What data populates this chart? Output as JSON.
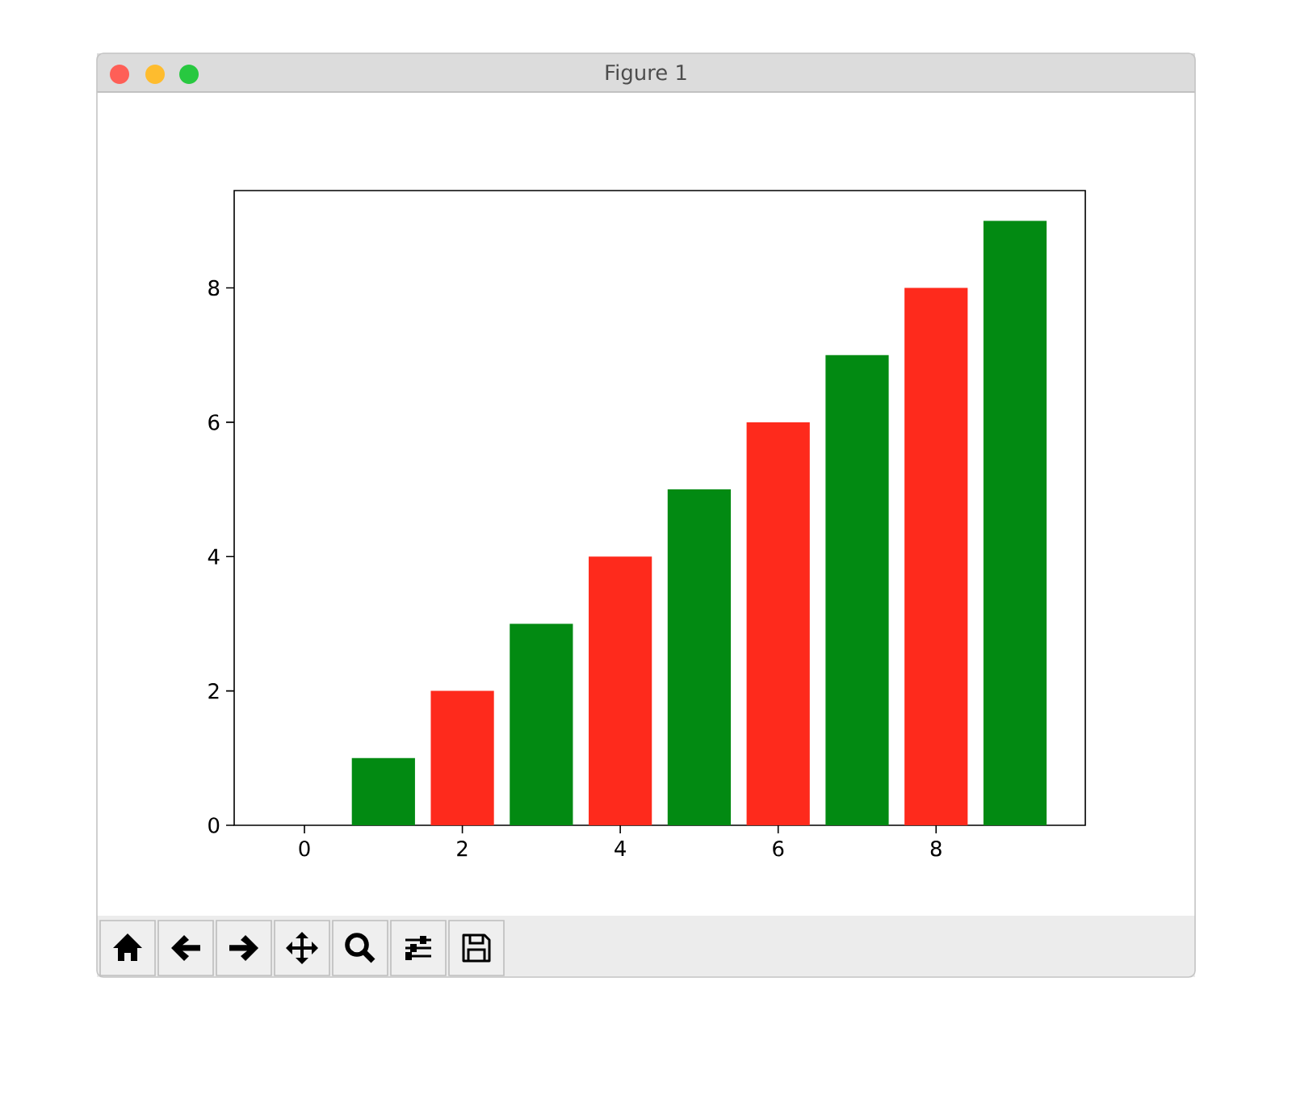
{
  "chart_data": {
    "type": "bar",
    "title": "Figure 1",
    "x": [
      0,
      1,
      2,
      3,
      4,
      5,
      6,
      7,
      8,
      9
    ],
    "values": [
      0,
      1,
      2,
      3,
      4,
      5,
      6,
      7,
      8,
      9
    ],
    "colors": [
      "#fe2a1c",
      "#028a12",
      "#fe2a1c",
      "#028a12",
      "#fe2a1c",
      "#028a12",
      "#fe2a1c",
      "#028a12",
      "#fe2a1c",
      "#028a12"
    ],
    "xlim": [
      -0.89,
      9.89
    ],
    "ylim": [
      0,
      9.45
    ],
    "xticks": [
      0,
      2,
      4,
      6,
      8
    ],
    "yticks": [
      0,
      2,
      4,
      6,
      8
    ]
  }
}
